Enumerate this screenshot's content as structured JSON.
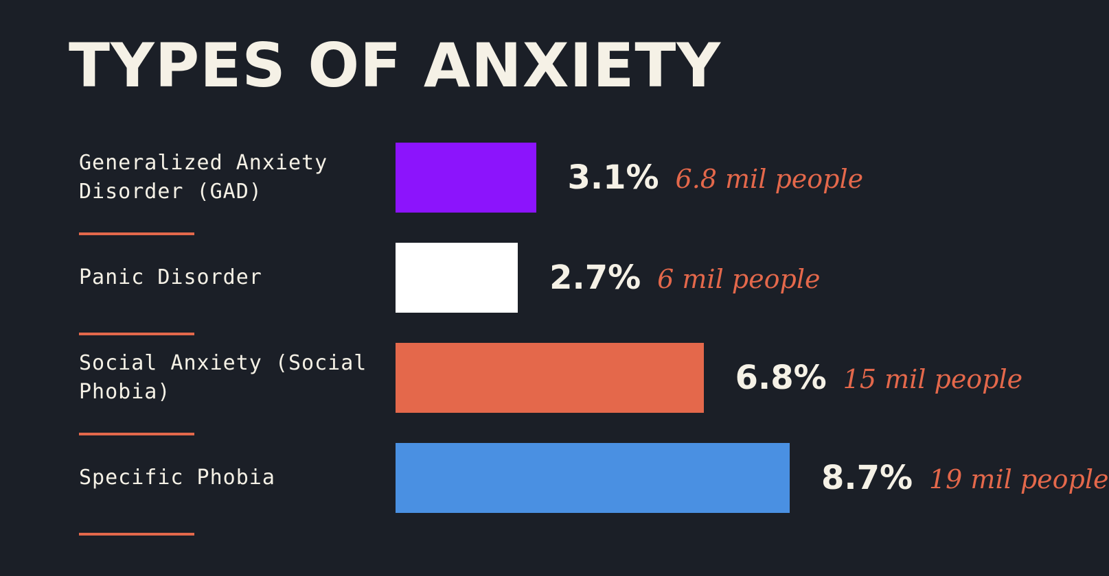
{
  "title": "TYPES OF ANXIETY",
  "colors": {
    "background": "#1b1f27",
    "text": "#f5f1e6",
    "accent": "#e4684b"
  },
  "chart_data": {
    "type": "bar",
    "orientation": "horizontal",
    "title": "TYPES OF ANXIETY",
    "categories": [
      "Generalized Anxiety Disorder (GAD)",
      "Panic Disorder",
      "Social Anxiety (Social Phobia)",
      "Specific Phobia"
    ],
    "values": [
      3.1,
      2.7,
      6.8,
      8.7
    ],
    "value_labels": [
      "3.1%",
      "2.7%",
      "6.8%",
      "8.7%"
    ],
    "people_labels": [
      "6.8 mil people",
      "6 mil people",
      "15 mil people",
      "19 mil people"
    ],
    "bar_colors": [
      "#8c14fc",
      "#ffffff",
      "#e4684b",
      "#4a90e2"
    ],
    "xlim": [
      0,
      8.7
    ],
    "grid": false,
    "xlabel": "",
    "ylabel": ""
  }
}
